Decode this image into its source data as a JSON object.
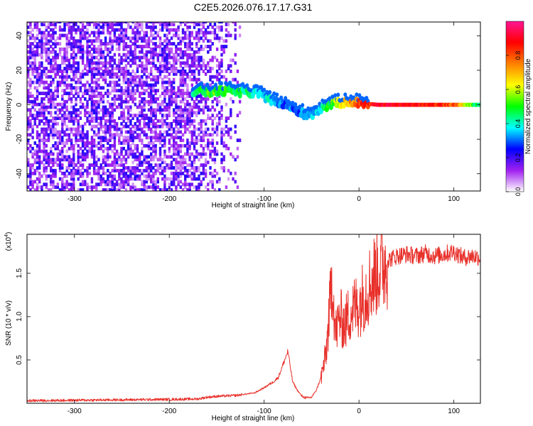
{
  "title": "C2E5.2026.076.17.17.G31",
  "chart_data": [
    {
      "type": "heatmap",
      "xlabel": "Height of straight line (km)",
      "ylabel": "Frequency (Hz)",
      "xlim": [
        -350,
        128
      ],
      "ylim": [
        -50,
        48
      ],
      "x_ticks": [
        -300,
        -200,
        -100,
        0,
        100
      ],
      "x_tick_labels": [
        "-300",
        "-200",
        "-100",
        "0",
        "100"
      ],
      "y_ticks": [
        -40,
        -20,
        0,
        20,
        40
      ],
      "y_tick_labels": [
        "-40",
        "-20",
        "0",
        "20",
        "40"
      ],
      "colorbar": {
        "label": "Normalized spectral amplitude",
        "range": [
          0,
          1
        ],
        "ticks": [
          0.0,
          0.2,
          0.4,
          0.6,
          0.8
        ],
        "tick_labels": [
          "0.0",
          "0.2",
          "0.4",
          "0.6",
          "0.8"
        ],
        "colors": [
          "#ffffff",
          "#a020f0",
          "#0000ff",
          "#00ffff",
          "#00ff00",
          "#ffff00",
          "#ff8000",
          "#ff0000",
          "#ff1493"
        ]
      },
      "ridge": {
        "x": [
          -175,
          -160,
          -140,
          -120,
          -100,
          -90,
          -80,
          -70,
          -60,
          -50,
          -40,
          -30,
          -20,
          -10,
          0,
          20,
          50,
          80,
          100,
          128
        ],
        "freq": [
          8,
          7,
          8,
          7,
          5,
          2,
          0,
          -3,
          -5,
          -6,
          -2,
          0,
          1,
          2,
          1,
          0,
          0,
          0,
          0,
          0
        ],
        "amplitude": [
          0.45,
          0.5,
          0.5,
          0.45,
          0.4,
          0.35,
          0.3,
          0.3,
          0.3,
          0.35,
          0.4,
          0.5,
          0.6,
          0.7,
          0.8,
          0.9,
          0.9,
          0.85,
          0.8,
          0.4
        ]
      }
    },
    {
      "type": "line",
      "xlabel": "Height of straight line (km)",
      "ylabel": "SNR (10 * v/v)",
      "y_multiplier": "(x10",
      "y_multiplier_exp": "4",
      "y_multiplier_close": ")",
      "xlim": [
        -350,
        128
      ],
      "ylim": [
        0,
        1.95
      ],
      "x_ticks": [
        -300,
        -200,
        -100,
        0,
        100
      ],
      "x_tick_labels": [
        "-300",
        "-200",
        "-100",
        "0",
        "100"
      ],
      "y_ticks": [
        0.5,
        1.0,
        1.5
      ],
      "y_tick_labels": [
        "0.5",
        "1.0",
        "1.5"
      ],
      "color": "#e8302a",
      "series": [
        {
          "x": [
            -350,
            -300,
            -250,
            -200,
            -170,
            -160,
            -150,
            -130,
            -110,
            -100,
            -90,
            -85,
            -80,
            -75,
            -70,
            -65,
            -60,
            -55,
            -50,
            -45,
            -40,
            -35,
            -30,
            -28,
            -25,
            -20,
            -15,
            -10,
            -5,
            0,
            5,
            10,
            20,
            30,
            40,
            50,
            60,
            70,
            80,
            90,
            100,
            110,
            120,
            128
          ],
          "values": [
            0.03,
            0.035,
            0.04,
            0.045,
            0.05,
            0.07,
            0.08,
            0.09,
            0.12,
            0.18,
            0.25,
            0.3,
            0.45,
            0.6,
            0.25,
            0.15,
            0.08,
            0.06,
            0.07,
            0.15,
            0.3,
            0.55,
            1.2,
            1.5,
            0.8,
            1.0,
            0.9,
            1.05,
            1.1,
            1.15,
            1.25,
            1.35,
            1.55,
            1.65,
            1.7,
            1.72,
            1.7,
            1.73,
            1.7,
            1.72,
            1.75,
            1.68,
            1.7,
            1.68
          ]
        }
      ]
    }
  ]
}
